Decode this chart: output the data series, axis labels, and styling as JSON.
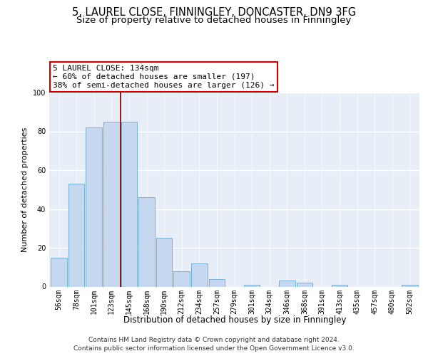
{
  "title1": "5, LAUREL CLOSE, FINNINGLEY, DONCASTER, DN9 3FG",
  "title2": "Size of property relative to detached houses in Finningley",
  "xlabel": "Distribution of detached houses by size in Finningley",
  "ylabel": "Number of detached properties",
  "categories": [
    "56sqm",
    "78sqm",
    "101sqm",
    "123sqm",
    "145sqm",
    "168sqm",
    "190sqm",
    "212sqm",
    "234sqm",
    "257sqm",
    "279sqm",
    "301sqm",
    "324sqm",
    "346sqm",
    "368sqm",
    "391sqm",
    "413sqm",
    "435sqm",
    "457sqm",
    "480sqm",
    "502sqm"
  ],
  "values": [
    15,
    53,
    82,
    85,
    85,
    46,
    25,
    8,
    12,
    4,
    0,
    1,
    0,
    3,
    2,
    0,
    1,
    0,
    0,
    0,
    1
  ],
  "bar_color": "#c5d8f0",
  "bar_edge_color": "#7aafd4",
  "background_color": "#e8eef8",
  "grid_color": "#ffffff",
  "vline_x_idx": 3.5,
  "vline_color": "#990000",
  "annotation_line1": "5 LAUREL CLOSE: 134sqm",
  "annotation_line2": "← 60% of detached houses are smaller (197)",
  "annotation_line3": "38% of semi-detached houses are larger (126) →",
  "annotation_box_color": "#ffffff",
  "annotation_box_edge_color": "#cc0000",
  "footer_text": "Contains HM Land Registry data © Crown copyright and database right 2024.\nContains public sector information licensed under the Open Government Licence v3.0.",
  "ylim": [
    0,
    100
  ],
  "title1_fontsize": 10.5,
  "title2_fontsize": 9.5,
  "xlabel_fontsize": 8.5,
  "ylabel_fontsize": 8,
  "tick_fontsize": 7,
  "annot_fontsize": 8,
  "footer_fontsize": 6.5
}
